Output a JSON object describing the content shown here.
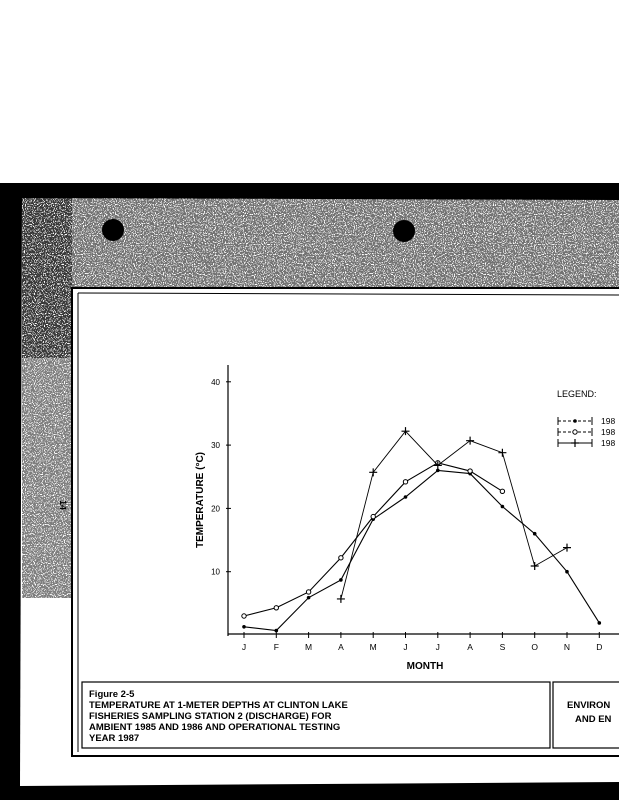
{
  "page": {
    "margin_number": "14"
  },
  "caption": {
    "figure_label": "Figure 2-5",
    "lines": [
      "TEMPERATURE AT 1-METER DEPTHS AT CLINTON LAKE",
      "FISHERIES SAMPLING STATION 2 (DISCHARGE) FOR",
      "AMBIENT 1985 AND 1986 AND OPERATIONAL TESTING",
      "YEAR 1987"
    ]
  },
  "side_block": {
    "lines": [
      "ENVIRON",
      "AND EN"
    ]
  },
  "chart_data": {
    "type": "line",
    "xlabel": "MONTH",
    "ylabel": "TEMPERATURE (°C)",
    "categories": [
      "J",
      "F",
      "M",
      "A",
      "M",
      "J",
      "J",
      "A",
      "S",
      "O",
      "N",
      "D"
    ],
    "yticks": [
      10,
      20,
      30,
      40
    ],
    "ylim": [
      0,
      42
    ],
    "grid": false,
    "legend": {
      "title": "LEGEND:",
      "placement": "top-right"
    },
    "series": [
      {
        "name": "198",
        "marker": "filled-circle",
        "values": [
          1.3,
          0.7,
          5.9,
          8.7,
          18.3,
          21.8,
          26.0,
          25.5,
          20.3,
          16.0,
          10.0,
          1.9
        ]
      },
      {
        "name": "198",
        "marker": "open-circle",
        "values": [
          3.0,
          4.3,
          6.8,
          12.2,
          18.7,
          24.2,
          27.2,
          25.9,
          22.7,
          null,
          null,
          null
        ]
      },
      {
        "name": "198",
        "marker": "plus",
        "values": [
          null,
          null,
          null,
          5.7,
          25.7,
          32.2,
          26.8,
          30.7,
          28.8,
          10.9,
          13.8,
          null
        ]
      }
    ]
  }
}
